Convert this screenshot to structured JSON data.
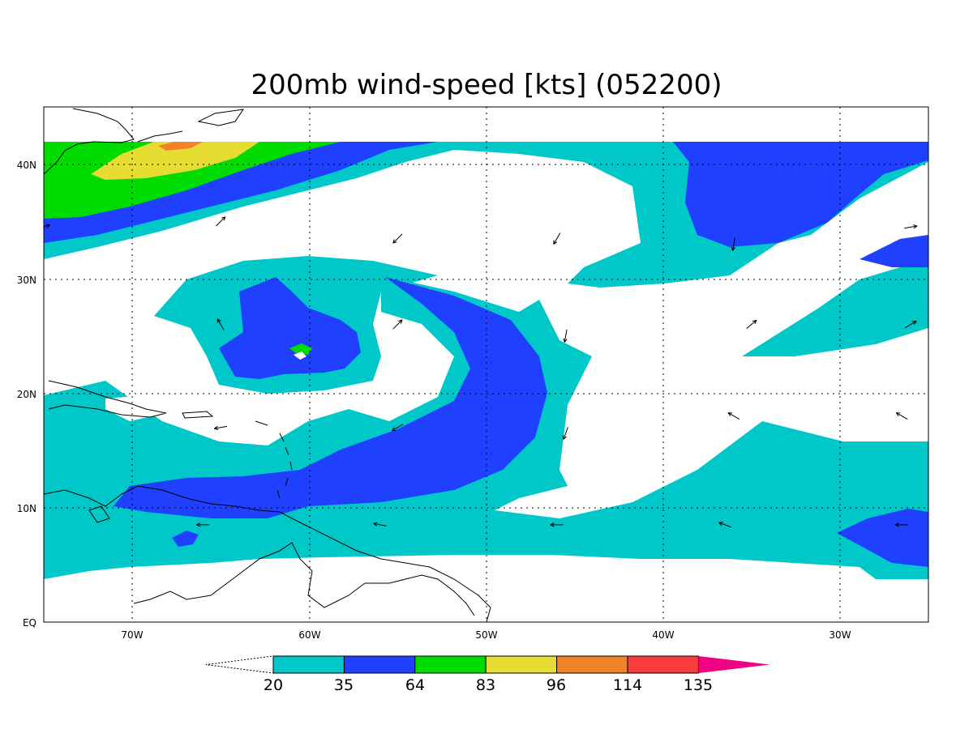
{
  "title": "200mb wind-speed [kts] (052200)",
  "map": {
    "lon_range": [
      -75,
      -25
    ],
    "lat_range": [
      0,
      45
    ],
    "lon_ticks": [
      {
        "lon": -70,
        "label": "70W"
      },
      {
        "lon": -60,
        "label": "60W"
      },
      {
        "lon": -50,
        "label": "50W"
      },
      {
        "lon": -40,
        "label": "40W"
      },
      {
        "lon": -30,
        "label": "30W"
      }
    ],
    "lat_ticks": [
      {
        "lat": 0,
        "label": "EQ"
      },
      {
        "lat": 10,
        "label": "10N"
      },
      {
        "lat": 20,
        "label": "20N"
      },
      {
        "lat": 30,
        "label": "30N"
      },
      {
        "lat": 40,
        "label": "40N"
      }
    ],
    "grid": true
  },
  "colorbar": {
    "levels": [
      "20",
      "35",
      "64",
      "83",
      "96",
      "114",
      "135"
    ],
    "colors": [
      "#00c8c8",
      "#2040ff",
      "#00dc00",
      "#e6dc32",
      "#f08228",
      "#fa3c3c",
      "#f00082"
    ],
    "lower_open": true
  },
  "wind_vectors": [
    {
      "lon": -65,
      "lat": 35,
      "dir": 45
    },
    {
      "lon": -55,
      "lat": 33.5,
      "dir": 225
    },
    {
      "lon": -46,
      "lat": 33.5,
      "dir": 240
    },
    {
      "lon": -36,
      "lat": 33,
      "dir": 260
    },
    {
      "lon": -55,
      "lat": 26,
      "dir": 45
    },
    {
      "lon": -45.5,
      "lat": 25,
      "dir": 260
    },
    {
      "lon": -35,
      "lat": 26,
      "dir": 40
    },
    {
      "lon": -26,
      "lat": 26,
      "dir": 30
    },
    {
      "lon": -65,
      "lat": 26,
      "dir": 120
    },
    {
      "lon": -55,
      "lat": 17,
      "dir": 210
    },
    {
      "lon": -45.5,
      "lat": 16.5,
      "dir": 250
    },
    {
      "lon": -36,
      "lat": 18,
      "dir": 150
    },
    {
      "lon": -26.5,
      "lat": 18,
      "dir": 150
    },
    {
      "lon": -65,
      "lat": 17,
      "dir": 190
    },
    {
      "lon": -66,
      "lat": 8.5,
      "dir": 180
    },
    {
      "lon": -56,
      "lat": 8.5,
      "dir": 170
    },
    {
      "lon": -46,
      "lat": 8.5,
      "dir": 180
    },
    {
      "lon": -36.5,
      "lat": 8.5,
      "dir": 160
    },
    {
      "lon": -26.5,
      "lat": 8.5,
      "dir": 180
    },
    {
      "lon": -75,
      "lat": 34.5,
      "dir": 20
    },
    {
      "lon": -26,
      "lat": 34.5,
      "dir": 10
    }
  ]
}
